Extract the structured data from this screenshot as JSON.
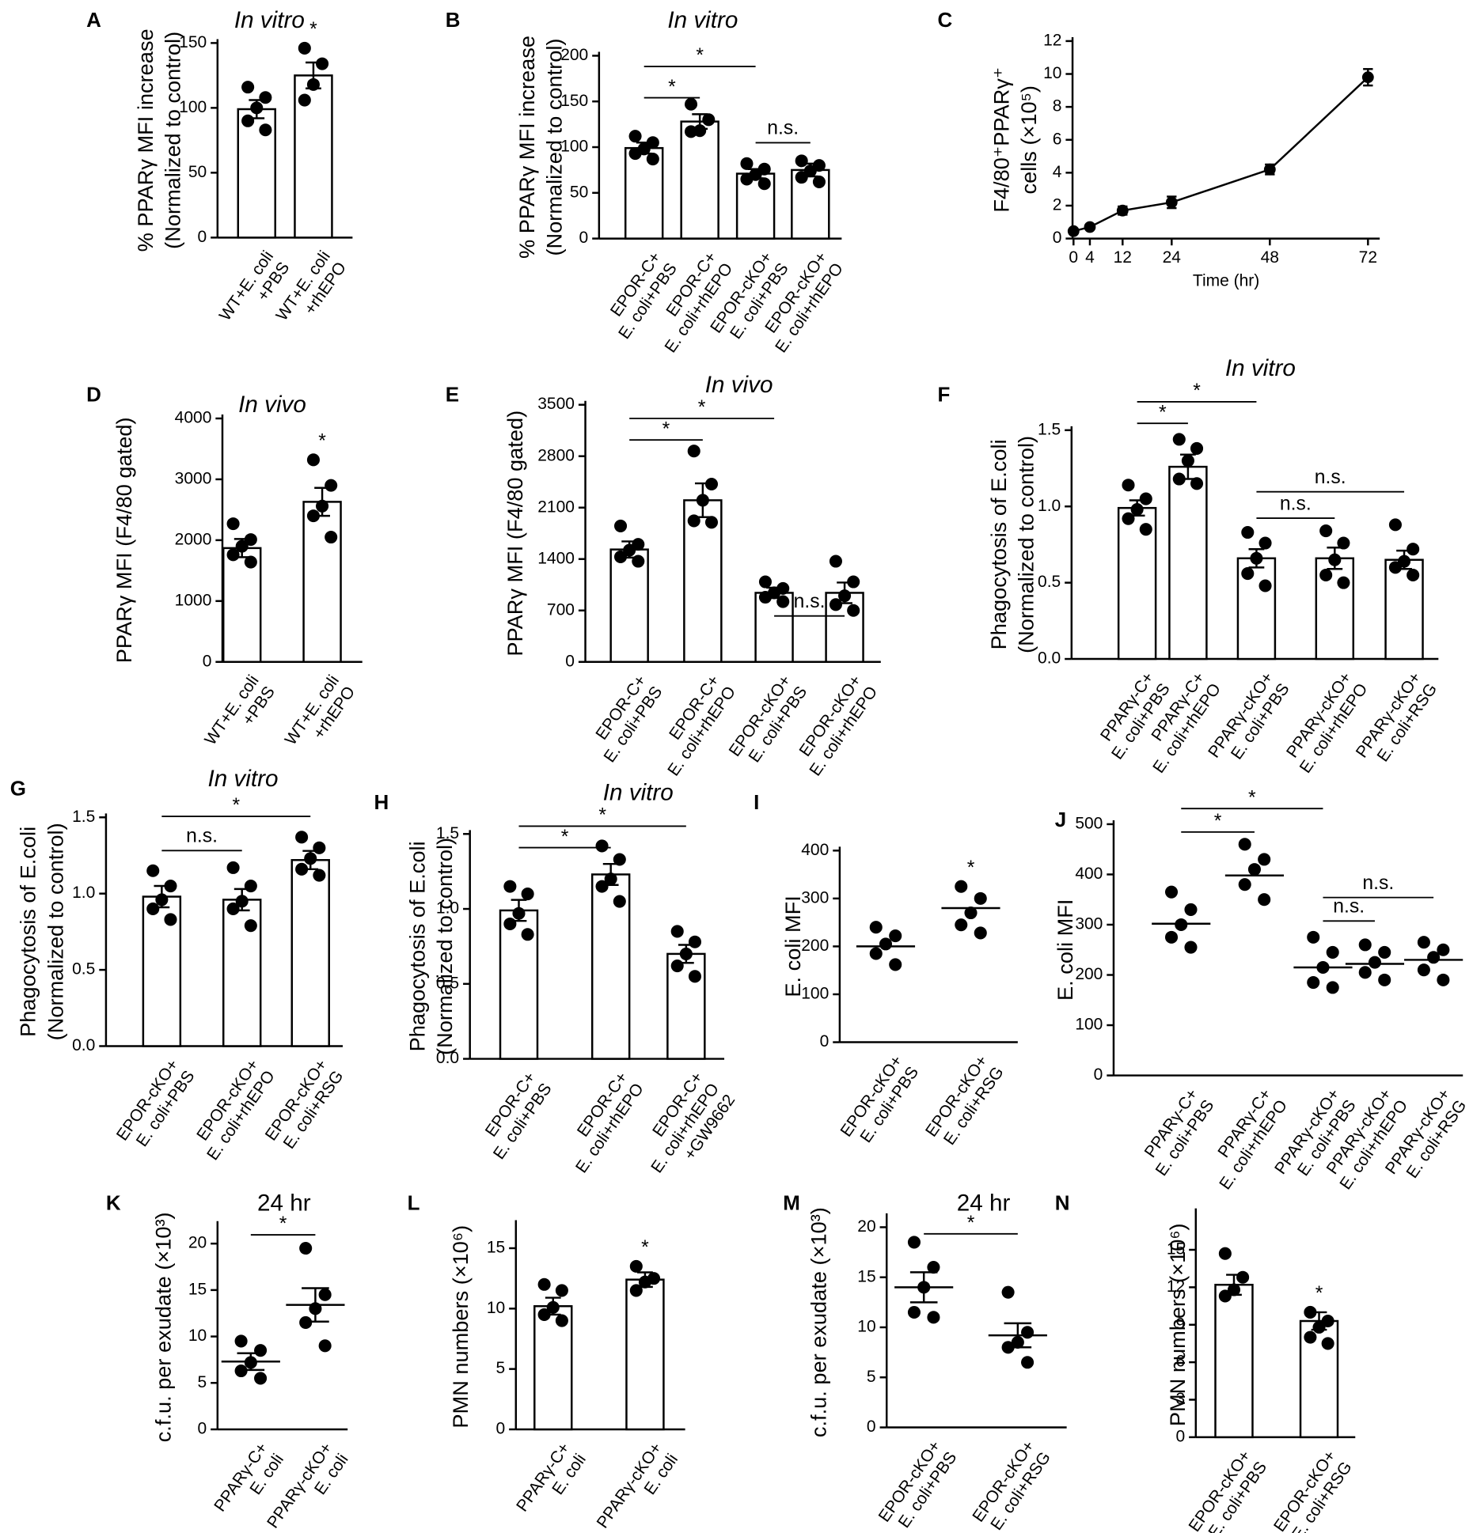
{
  "chart_data": [
    {
      "panel": "A",
      "type": "bar",
      "title": "In vitro",
      "title_italic": true,
      "ylabel": [
        "% PPARγ MFI increase",
        "(Normalized to control)"
      ],
      "categories": [
        [
          "WT+E. coli",
          "+PBS"
        ],
        [
          "WT+E. coli",
          "+rhEPO"
        ]
      ],
      "values": [
        99,
        125
      ],
      "errors": [
        7,
        10
      ],
      "points": [
        [
          116,
          108,
          100,
          90,
          83
        ],
        [
          146,
          134,
          118,
          106
        ]
      ],
      "ylim": [
        0,
        150
      ],
      "yticks": [
        0,
        50,
        100,
        150
      ],
      "annotations": [
        {
          "text": "*",
          "over": 1
        }
      ]
    },
    {
      "panel": "B",
      "type": "bar",
      "title": "In vitro",
      "title_italic": true,
      "ylabel": [
        "% PPARγ MFI increase",
        "(Normalized to control)"
      ],
      "categories": [
        [
          "EPOR-C+",
          "E. coli+PBS"
        ],
        [
          "EPOR-C+",
          "E. coli+rhEPO"
        ],
        [
          "EPOR-cKO+",
          "E. coli+PBS"
        ],
        [
          "EPOR-cKO+",
          "E. coli+rhEPO"
        ]
      ],
      "values": [
        99,
        128,
        71,
        75
      ],
      "errors": [
        6,
        8,
        5,
        7
      ],
      "points": [
        [
          112,
          105,
          98,
          93,
          87
        ],
        [
          147,
          130,
          118,
          117
        ],
        [
          82,
          76,
          70,
          65,
          60
        ],
        [
          85,
          80,
          74,
          67,
          62
        ]
      ],
      "ylim": [
        0,
        200
      ],
      "yticks": [
        0,
        50,
        100,
        150,
        200
      ],
      "annotations": [
        {
          "text": "*",
          "between": [
            0,
            1
          ]
        },
        {
          "text": "*",
          "between": [
            0,
            2
          ]
        },
        {
          "text": "n.s.",
          "between": [
            2,
            3
          ]
        }
      ]
    },
    {
      "panel": "C",
      "type": "line",
      "ylabel": [
        "F4/80⁺PPARγ⁺",
        "cells (×10⁵)"
      ],
      "xlabel": "Time (hr)",
      "x": [
        0,
        4,
        12,
        24,
        48,
        72
      ],
      "values": [
        0.45,
        0.7,
        1.7,
        2.2,
        4.2,
        9.8
      ],
      "errors": [
        0.1,
        0.1,
        0.25,
        0.35,
        0.3,
        0.5
      ],
      "xlim": [
        0,
        72
      ],
      "xticks": [
        0,
        4,
        12,
        24,
        48,
        72
      ],
      "ylim": [
        0,
        12
      ],
      "yticks": [
        0,
        2,
        4,
        6,
        8,
        10,
        12
      ]
    },
    {
      "panel": "D",
      "type": "bar",
      "title": "In vivo",
      "title_italic": true,
      "ylabel": [
        "PPARγ MFI (F4/80 gated)"
      ],
      "categories": [
        [
          "WT+E. coli",
          "+PBS"
        ],
        [
          "WT+E. coli",
          "+rhEPO"
        ]
      ],
      "values": [
        1870,
        2630
      ],
      "errors": [
        150,
        230
      ],
      "points": [
        [
          2270,
          2010,
          1900,
          1760,
          1640
        ],
        [
          3320,
          2900,
          2560,
          2400,
          2050
        ]
      ],
      "ylim": [
        0,
        4000
      ],
      "yticks": [
        0,
        1000,
        2000,
        3000,
        4000
      ],
      "annotations": [
        {
          "text": "*",
          "over": 1
        }
      ]
    },
    {
      "panel": "E",
      "type": "bar",
      "title": "In vivo",
      "title_italic": true,
      "ylabel": [
        "PPARγ MFI (F4/80 gated)"
      ],
      "categories": [
        [
          "EPOR-C+",
          "E. coli+PBS"
        ],
        [
          "EPOR-C+",
          "E. coli+rhEPO"
        ],
        [
          "EPOR-cKO+",
          "E. coli+PBS"
        ],
        [
          "EPOR-cKO+",
          "E. coli+rhEPO"
        ]
      ],
      "values": [
        1530,
        2200,
        940,
        940
      ],
      "errors": [
        110,
        230,
        70,
        140
      ],
      "points": [
        [
          1850,
          1600,
          1520,
          1430,
          1370
        ],
        [
          2870,
          2420,
          2200,
          1920,
          1900
        ],
        [
          1090,
          1000,
          940,
          880,
          820
        ],
        [
          1370,
          1090,
          900,
          780,
          700
        ]
      ],
      "ylim": [
        0,
        3500
      ],
      "yticks": [
        0,
        700,
        1400,
        2100,
        2800,
        3500
      ],
      "annotations": [
        {
          "text": "*",
          "between": [
            0,
            1
          ]
        },
        {
          "text": "*",
          "between": [
            0,
            2
          ]
        },
        {
          "text": "n.s.",
          "between": [
            2,
            3
          ]
        }
      ]
    },
    {
      "panel": "F",
      "type": "bar",
      "title": "In vitro",
      "title_italic": true,
      "ylabel": [
        "Phagocytosis of E.coli",
        "(Normalized to control)"
      ],
      "categories": [
        [
          "PPARγ-C+",
          "E. coli+PBS"
        ],
        [
          "PPARγ-C+",
          "E. coli+rhEPO"
        ],
        [
          "PPARγ-cKO+",
          "E. coli+PBS"
        ],
        [
          "PPARγ-cKO+",
          "E. coli+rhEPO"
        ],
        [
          "PPARγ-cKO+",
          "E. coli+RSG"
        ]
      ],
      "values": [
        0.99,
        1.26,
        0.66,
        0.66,
        0.65
      ],
      "errors": [
        0.05,
        0.08,
        0.06,
        0.07,
        0.06
      ],
      "points": [
        [
          1.14,
          1.05,
          0.98,
          0.92,
          0.85
        ],
        [
          1.44,
          1.38,
          1.3,
          1.18,
          1.15
        ],
        [
          0.83,
          0.76,
          0.66,
          0.56,
          0.48
        ],
        [
          0.84,
          0.76,
          0.65,
          0.55,
          0.5
        ],
        [
          0.88,
          0.72,
          0.64,
          0.6,
          0.55
        ]
      ],
      "ylim": [
        0,
        1.5
      ],
      "yticks": [
        {
          "value": 0,
          "label": "0.0"
        },
        0.5,
        {
          "value": 1,
          "label": "1.0"
        },
        1.5
      ],
      "annotations": [
        {
          "text": "*",
          "between": [
            0,
            1
          ]
        },
        {
          "text": "*",
          "between": [
            0,
            2
          ]
        },
        {
          "text": "n.s.",
          "between": [
            2,
            3
          ]
        },
        {
          "text": "n.s.",
          "between": [
            2,
            4
          ]
        }
      ]
    },
    {
      "panel": "G",
      "type": "bar",
      "title": "In vitro",
      "title_italic": true,
      "ylabel": [
        "Phagocytosis of E.coli",
        "(Normalized to control)"
      ],
      "categories": [
        [
          "EPOR-cKO+",
          "E. coli+PBS"
        ],
        [
          "EPOR-cKO+",
          "E. coli+rhEPO"
        ],
        [
          "EPOR-cKO+",
          "E. coli+RSG"
        ]
      ],
      "values": [
        0.98,
        0.96,
        1.22
      ],
      "errors": [
        0.07,
        0.07,
        0.06
      ],
      "points": [
        [
          1.15,
          1.05,
          0.96,
          0.9,
          0.83
        ],
        [
          1.17,
          1.05,
          0.95,
          0.9,
          0.79
        ],
        [
          1.37,
          1.3,
          1.23,
          1.16,
          1.12
        ]
      ],
      "ylim": [
        0,
        1.5
      ],
      "yticks": [
        {
          "value": 0,
          "label": "0.0"
        },
        0.5,
        {
          "value": 1,
          "label": "1.0"
        },
        1.5
      ],
      "annotations": [
        {
          "text": "n.s.",
          "between": [
            0,
            1
          ]
        },
        {
          "text": "*",
          "between": [
            0,
            2
          ]
        }
      ]
    },
    {
      "panel": "H",
      "type": "bar",
      "title": "In vitro",
      "title_italic": true,
      "ylabel": [
        "Phagocytosis of E.coli",
        "(Normalized to control)"
      ],
      "categories": [
        [
          "EPOR-C+",
          "E. coli+PBS"
        ],
        [
          "EPOR-C+",
          "E. coli+rhEPO"
        ],
        [
          "EPOR-C+",
          "E. coli+rhEPO",
          "+GW9662"
        ]
      ],
      "values": [
        0.99,
        1.23,
        0.7
      ],
      "errors": [
        0.07,
        0.07,
        0.06
      ],
      "points": [
        [
          1.15,
          1.1,
          0.97,
          0.9,
          0.83
        ],
        [
          1.42,
          1.33,
          1.2,
          1.15,
          1.05
        ],
        [
          0.85,
          0.78,
          0.7,
          0.62,
          0.55
        ]
      ],
      "ylim": [
        0,
        1.5
      ],
      "yticks": [
        {
          "value": 0,
          "label": "0.0"
        },
        0.5,
        {
          "value": 1,
          "label": "1.0"
        },
        1.5
      ],
      "annotations": [
        {
          "text": "*",
          "between": [
            0,
            1
          ]
        },
        {
          "text": "*",
          "between": [
            0,
            2
          ]
        }
      ]
    },
    {
      "panel": "I",
      "type": "dot",
      "ylabel": [
        "E. coli  MFI"
      ],
      "categories": [
        [
          "EPOR-cKO+",
          "E. coli+PBS"
        ],
        [
          "EPOR-cKO+",
          "E. coli+RSG"
        ]
      ],
      "values": [
        200,
        280
      ],
      "points": [
        [
          240,
          222,
          205,
          185,
          162
        ],
        [
          325,
          300,
          270,
          245,
          228
        ]
      ],
      "ylim": [
        0,
        400
      ],
      "yticks": [
        0,
        100,
        200,
        300,
        400
      ],
      "annotations": [
        {
          "text": "*",
          "over": 1
        }
      ]
    },
    {
      "panel": "J",
      "type": "dot",
      "ylabel": [
        "E. coli MFI"
      ],
      "categories": [
        [
          "PPARγ-C+",
          "E. coli+PBS"
        ],
        [
          "PPARγ-C+",
          "E. coli+rhEPO"
        ],
        [
          "PPARγ-cKO+",
          "E. coli+PBS"
        ],
        [
          "PPARγ-cKO+",
          "E. coli+rhEPO"
        ],
        [
          "PPARγ-cKO+",
          "E. coli+RSG"
        ]
      ],
      "values": [
        302,
        398,
        215,
        222,
        230
      ],
      "points": [
        [
          365,
          330,
          300,
          275,
          255
        ],
        [
          460,
          430,
          410,
          380,
          350
        ],
        [
          275,
          245,
          215,
          185,
          175
        ],
        [
          260,
          245,
          225,
          205,
          190
        ],
        [
          265,
          250,
          235,
          210,
          190
        ]
      ],
      "ylim": [
        0,
        500
      ],
      "yticks": [
        0,
        100,
        200,
        300,
        400,
        500
      ],
      "annotations": [
        {
          "text": "*",
          "between": [
            0,
            1
          ]
        },
        {
          "text": "*",
          "between": [
            0,
            2
          ]
        },
        {
          "text": "n.s.",
          "between": [
            2,
            3
          ]
        },
        {
          "text": "n.s.",
          "between": [
            2,
            4
          ]
        }
      ]
    },
    {
      "panel": "K",
      "type": "dot",
      "title": "24 hr",
      "title_italic": false,
      "ylabel": [
        "c.f.u. per exudate (×10³)"
      ],
      "categories": [
        [
          "PPARγ-C+",
          "E. coli"
        ],
        [
          "PPARγ-cKO+",
          "E. coli"
        ]
      ],
      "values": [
        7.3,
        13.4
      ],
      "errors": [
        0.9,
        1.8
      ],
      "points": [
        [
          9.5,
          8.5,
          7.2,
          6.3,
          5.5
        ],
        [
          19.5,
          14.5,
          13,
          11.5,
          9
        ]
      ],
      "ylim": [
        0,
        22
      ],
      "yticks": [
        0,
        5,
        10,
        15,
        20
      ],
      "annotations": [
        {
          "text": "*",
          "between": [
            0,
            1
          ]
        }
      ]
    },
    {
      "panel": "L",
      "type": "bar",
      "ylabel": [
        "PMN numbers (×10⁶)"
      ],
      "categories": [
        [
          "PPARγ-C+",
          "E. coli"
        ],
        [
          "PPARγ-cKO+",
          "E. coli"
        ]
      ],
      "values": [
        10.2,
        12.4
      ],
      "errors": [
        0.7,
        0.6
      ],
      "points": [
        [
          12,
          11.5,
          10.1,
          9.5,
          9
        ],
        [
          13.5,
          12.5,
          12.2,
          11.5
        ]
      ],
      "ylim": [
        0,
        17
      ],
      "yticks": [
        0,
        5,
        10,
        15
      ],
      "annotations": [
        {
          "text": "*",
          "over": 1
        }
      ]
    },
    {
      "panel": "M",
      "type": "dot",
      "title": "24 hr",
      "title_italic": false,
      "ylabel": [
        "c.f.u. per exudate (×10³)"
      ],
      "categories": [
        [
          "EPOR-cKO+",
          "E. coli+PBS"
        ],
        [
          "EPOR-cKO+",
          "E. coli+RSG"
        ]
      ],
      "values": [
        14,
        9.2
      ],
      "errors": [
        1.5,
        1.2
      ],
      "points": [
        [
          18.5,
          16,
          14,
          11.5,
          11
        ],
        [
          13.5,
          9.5,
          8.5,
          8,
          6.5
        ]
      ],
      "ylim": [
        0,
        21
      ],
      "yticks": [
        0,
        5,
        10,
        15,
        20
      ],
      "annotations": [
        {
          "text": "*",
          "between": [
            0,
            1
          ]
        }
      ]
    },
    {
      "panel": "N",
      "type": "bar",
      "ylabel": [
        "PMN numbers (×10⁶)"
      ],
      "categories": [
        [
          "EPOR-cKO+",
          "E. coli+PBS"
        ],
        [
          "EPOR-cKO+",
          "E. coli+RSG"
        ]
      ],
      "values": [
        12.2,
        9.3
      ],
      "errors": [
        0.8,
        0.7
      ],
      "points": [
        [
          14.7,
          12.8,
          11.8,
          11.3
        ],
        [
          10,
          9.3,
          8.8,
          8,
          7.5
        ]
      ],
      "ylim": [
        0,
        18
      ],
      "yticks": [
        0,
        3,
        6,
        9,
        12,
        15
      ],
      "annotations": [
        {
          "text": "*",
          "over": 1
        }
      ]
    }
  ]
}
